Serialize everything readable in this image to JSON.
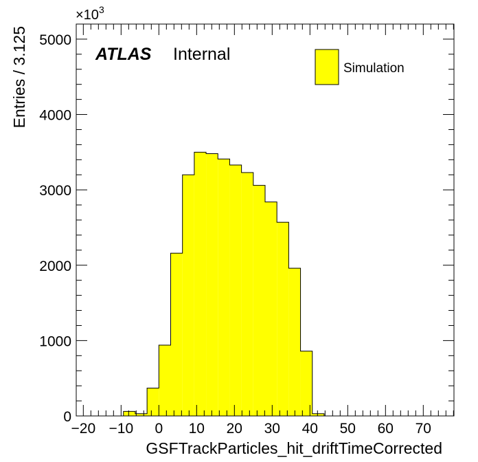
{
  "chart_data": {
    "type": "bar",
    "histogram": true,
    "xlabel": "GSFTrackParticles_hit_driftTimeCorrected",
    "ylabel": "Entries / 3.125",
    "y_multiplier_label": "×10",
    "y_multiplier_exponent": "3",
    "xlim": [
      -21.875,
      78.125
    ],
    "ylim": [
      0,
      5200
    ],
    "x_ticks": [
      -20,
      -10,
      0,
      10,
      20,
      30,
      40,
      50,
      60,
      70
    ],
    "x_tick_labels": [
      "−20",
      "−10",
      "0",
      "10",
      "20",
      "30",
      "40",
      "50",
      "60",
      "70"
    ],
    "y_ticks": [
      0,
      1000,
      2000,
      3000,
      4000,
      5000
    ],
    "y_tick_labels": [
      "0",
      "1000",
      "2000",
      "3000",
      "4000",
      "5000"
    ],
    "bin_width": 3.125,
    "bin_edges_start": -9.375,
    "series": [
      {
        "name": "Simulation",
        "color": "#ffff00",
        "edge_color": "#000000",
        "values": [
          60,
          30,
          370,
          940,
          2160,
          3200,
          3500,
          3480,
          3410,
          3330,
          3230,
          3060,
          2840,
          2570,
          1960,
          860,
          30
        ]
      }
    ],
    "legend": {
      "position": "top-right",
      "entries": [
        "Simulation"
      ]
    },
    "grid": false
  },
  "annotation": {
    "atlas": "ATLAS",
    "status": "Internal"
  }
}
